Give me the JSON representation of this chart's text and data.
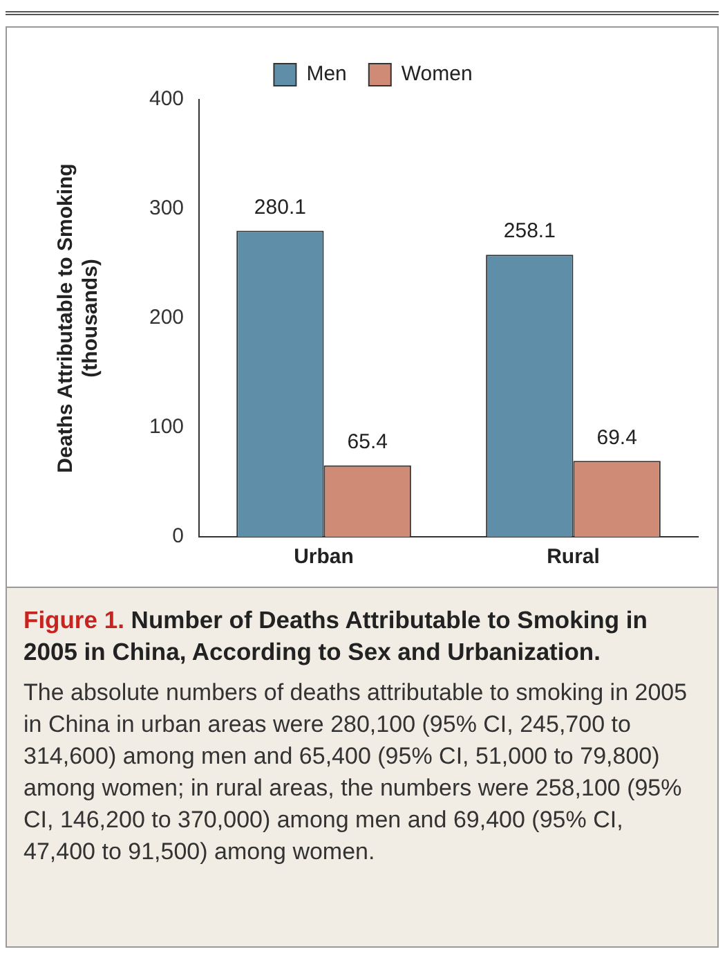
{
  "chart_data": {
    "type": "bar",
    "title": "Figure 1. Number of Deaths Attributable to Smoking in 2005 in China, According to Sex and Urbanization.",
    "ylabel": "Deaths Attributable to Smoking (thousands)",
    "categories": [
      "Urban",
      "Rural"
    ],
    "series": [
      {
        "name": "Men",
        "color": "#5e8ea8",
        "values": [
          280.1,
          258.1
        ]
      },
      {
        "name": "Women",
        "color": "#cf8b76",
        "values": [
          65.4,
          69.4
        ]
      }
    ],
    "ylim": [
      0,
      400
    ],
    "yticks": [
      0,
      100,
      200,
      300,
      400
    ],
    "grid": false,
    "legend": "top",
    "data_labels": true,
    "annotations": [
      "The absolute numbers of deaths attributable to smoking in 2005 in China in urban areas were 280,100 (95% CI, 245,700 to 314,600) among men and 65,400 (95% CI, 51,000 to 79,800) among women; in rural areas, the numbers were 258,100 (95% CI, 146,200 to 370,000) among men and 69,400 (95% CI, 47,400 to 91,500) among women."
    ]
  }
}
